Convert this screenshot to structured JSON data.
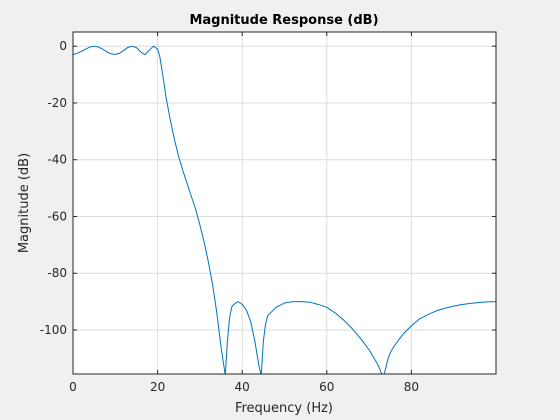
{
  "window": {
    "title": "Magnitude Response (dB)"
  },
  "colors": {
    "figure_bg": "#f0f0f0",
    "axes_bg": "#ffffff",
    "line": "#0072bd",
    "grid": "#dcdcdc",
    "axis": "#262626"
  },
  "chart_data": {
    "type": "line",
    "title": "Magnitude Response (dB)",
    "xlabel": "Frequency (Hz)",
    "ylabel": "Magnitude (dB)",
    "xlim": [
      0,
      100
    ],
    "ylim": [
      -115.5,
      5
    ],
    "grid": true,
    "x_ticks": [
      0,
      20,
      40,
      60,
      80
    ],
    "x_tick_labels": [
      "0",
      "20",
      "40",
      "60",
      "80"
    ],
    "y_ticks": [
      0,
      -20,
      -40,
      -60,
      -80,
      -100
    ],
    "y_tick_labels": [
      "0",
      "-20",
      "-40",
      "-60",
      "-80",
      "-100"
    ],
    "series": [
      {
        "x": [
          0,
          1,
          2,
          3,
          4,
          5,
          6,
          7,
          8,
          9,
          10,
          11,
          12,
          13,
          14,
          15,
          16,
          17,
          18,
          19,
          20,
          20.5,
          21,
          22,
          23,
          24,
          25,
          26,
          27,
          28,
          29,
          30,
          31,
          32,
          33,
          34,
          35,
          36,
          36.5,
          37,
          37.5,
          38,
          39,
          40,
          41,
          42,
          43,
          44,
          44.5,
          45,
          45.5,
          46,
          48,
          50,
          52,
          54,
          56,
          58,
          60,
          62,
          64,
          66,
          68,
          70,
          71,
          72,
          73,
          73.5,
          74,
          74.5,
          75,
          76,
          78,
          80,
          82,
          84,
          86,
          88,
          90,
          92,
          94,
          96,
          98,
          100
        ],
        "y": [
          -3,
          -2.5,
          -1.8,
          -1,
          -0.3,
          0,
          -0.3,
          -1,
          -2,
          -2.7,
          -2.9,
          -2.5,
          -1.5,
          -0.4,
          0,
          -0.5,
          -2,
          -3,
          -1.5,
          0,
          -1,
          -3.5,
          -8,
          -18,
          -26,
          -33,
          -39,
          -44,
          -48.5,
          -53,
          -57.5,
          -63,
          -69,
          -76,
          -84,
          -94,
          -106,
          -116,
          -104,
          -96,
          -92,
          -91,
          -90,
          -91,
          -93,
          -97,
          -104,
          -113,
          -116,
          -104,
          -98,
          -95,
          -92,
          -90.5,
          -90,
          -90,
          -90.2,
          -91,
          -92,
          -94,
          -96.5,
          -99.5,
          -103,
          -107,
          -109.5,
          -112,
          -115.5,
          -116,
          -113,
          -110,
          -108,
          -105.5,
          -101.5,
          -98.5,
          -96,
          -94.5,
          -93.2,
          -92.3,
          -91.6,
          -91,
          -90.6,
          -90.3,
          -90.1,
          -90
        ]
      }
    ]
  }
}
